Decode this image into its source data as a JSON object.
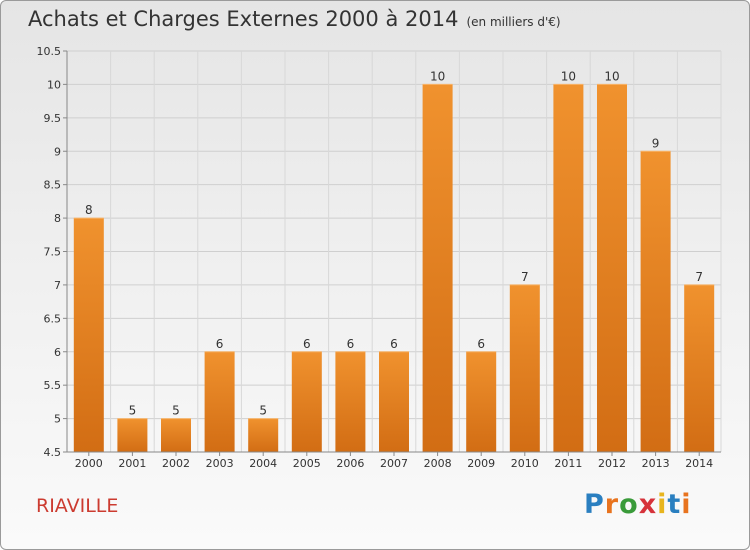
{
  "header": {
    "title": "Achats et Charges Externes 2000 à 2014",
    "subtitle": "(en milliers d'€)"
  },
  "footer": {
    "commune": "RIAVILLE",
    "brand_letters": [
      "P",
      "r",
      "o",
      "x",
      "i",
      "t",
      "i"
    ],
    "brand_colors": [
      "#2a7fc0",
      "#e8731e",
      "#3a9b3a",
      "#d6323a",
      "#e8b51e",
      "#2a7fc0",
      "#e8731e"
    ]
  },
  "chart_data": {
    "type": "bar",
    "categories": [
      "2000",
      "2001",
      "2002",
      "2003",
      "2004",
      "2005",
      "2006",
      "2007",
      "2008",
      "2009",
      "2010",
      "2011",
      "2012",
      "2013",
      "2014"
    ],
    "values": [
      8,
      5,
      5,
      6,
      5,
      6,
      6,
      6,
      10,
      6,
      7,
      10,
      10,
      9,
      7
    ],
    "data_labels": [
      "8",
      "5",
      "5",
      "6",
      "5",
      "6",
      "6",
      "6",
      "10",
      "6",
      "7",
      "10",
      "10",
      "9",
      "7"
    ],
    "yticks": [
      "4.5",
      "5",
      "5.5",
      "6",
      "6.5",
      "7",
      "7.5",
      "8",
      "8.5",
      "9",
      "9.5",
      "10",
      "10.5"
    ],
    "ylim": [
      4.5,
      10.5
    ],
    "grid": true,
    "bar_color": "#f0922e",
    "bar_color_dark": "#d26d14"
  }
}
